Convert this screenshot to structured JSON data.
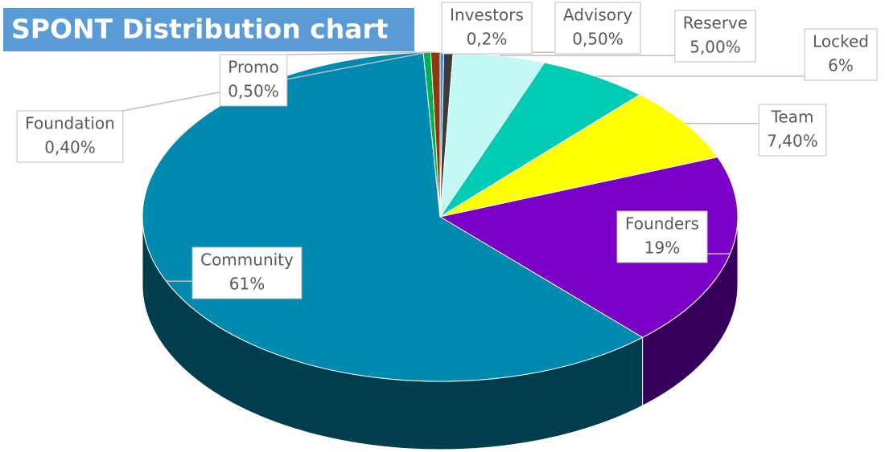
{
  "chart_data": {
    "type": "pie3d",
    "title": "SPONT Distribution chart",
    "categories": [
      "Investors",
      "Advisory",
      "Reserve",
      "Locked",
      "Team",
      "Founders",
      "Community",
      "Foundation",
      "Promo"
    ],
    "values": [
      0.2,
      0.5,
      5,
      6,
      7.4,
      19,
      61,
      0.4,
      0.5
    ],
    "value_labels": [
      "0,2%",
      "0,50%",
      "5,00%",
      "6%",
      "7,40%",
      "19%",
      "61%",
      "0,40%",
      "0,50%"
    ],
    "colors": [
      "#3d8fe0",
      "#3b3b3b",
      "#c4f8f4",
      "#00ccb4",
      "#ffff00",
      "#7b00c8",
      "#008ab0",
      "#00b050",
      "#8b3a10"
    ]
  }
}
